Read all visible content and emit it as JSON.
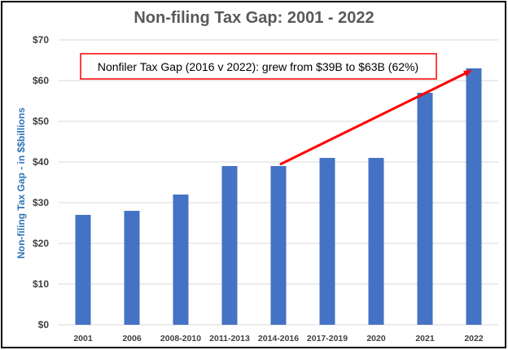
{
  "chart_data": {
    "type": "bar",
    "title": "Non-filing Tax Gap:  2001 - 2022",
    "ylabel": "Non-filing Tax Gap - in $$billions",
    "xlabel": "",
    "categories": [
      "2001",
      "2006",
      "2008-2010",
      "2011-2013",
      "2014-2016",
      "2017-2019",
      "2020",
      "2021",
      "2022"
    ],
    "values": [
      27,
      28,
      32,
      39,
      39,
      41,
      41,
      57,
      63
    ],
    "ylim": [
      0,
      70
    ],
    "yticks": [
      0,
      10,
      20,
      30,
      40,
      50,
      60,
      70
    ],
    "ytick_labels": [
      "$0",
      "$10",
      "$20",
      "$30",
      "$40",
      "$50",
      "$60",
      "$70"
    ],
    "grid": true,
    "legend": "none",
    "annotation": {
      "text": "Nonfiler Tax Gap (2016 v 2022): grew from $39B to $63B (62%)",
      "arrow_from_category": "2014-2016",
      "arrow_to_category": "2022"
    }
  },
  "colors": {
    "bar": "#4472C4",
    "title": "#595959",
    "axis_label": "#2E75B6",
    "tick_label": "#404040",
    "grid": "#D9D9D9",
    "frame": "#000000",
    "annotation": "#FF0000"
  }
}
